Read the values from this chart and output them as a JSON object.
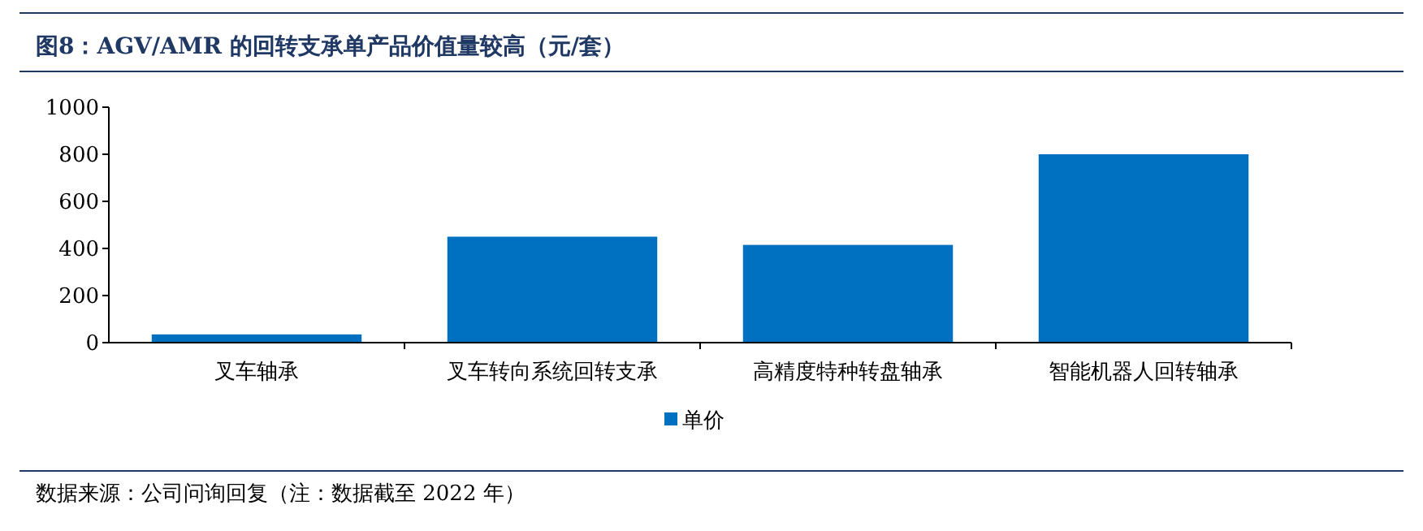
{
  "chart_data": {
    "type": "bar",
    "title": "图8：AGV/AMR 的回转支承单产品价值量较高（元/套）",
    "categories": [
      "叉车轴承",
      "叉车转向系统回转支承",
      "高精度特种转盘轴承",
      "智能机器人回转轴承"
    ],
    "series": [
      {
        "name": "单价",
        "color": "#0070c0",
        "values": [
          35,
          450,
          415,
          800
        ]
      }
    ],
    "ylim": [
      0,
      1000
    ],
    "yticks": [
      0,
      200,
      400,
      600,
      800,
      1000
    ],
    "grid": false,
    "legend": "bottom",
    "annotations": [
      "数据来源：公司问询回复（注：数据截至 2022 年）"
    ]
  }
}
